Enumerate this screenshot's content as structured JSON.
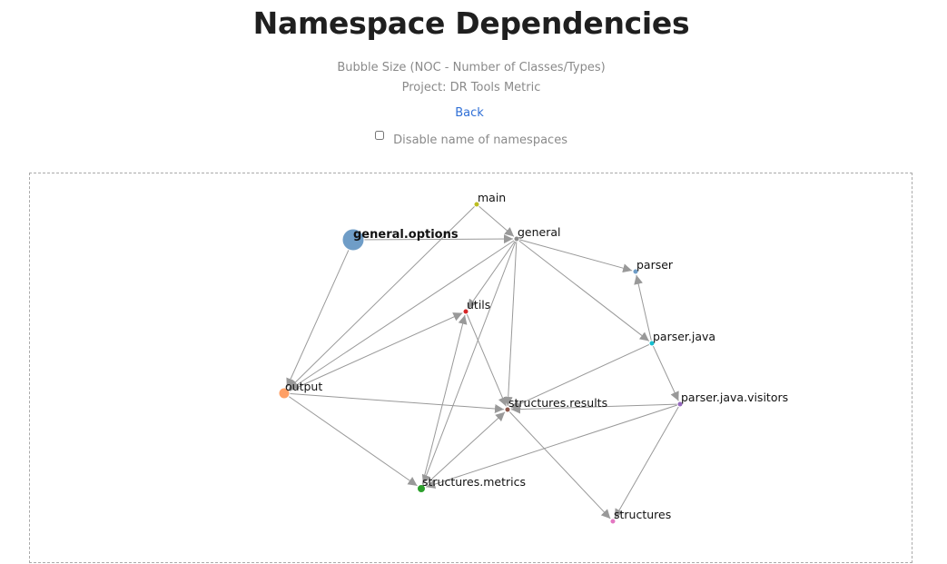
{
  "header": {
    "title": "Namespace Dependencies",
    "bubble_size": "Bubble Size (NOC - Number of Classes/Types)",
    "project": "Project: DR Tools Metric",
    "back_label": "Back",
    "toggle_label": "Disable name of namespaces",
    "toggle_checked": false
  },
  "graph": {
    "nodes": [
      {
        "id": "main",
        "label": "main",
        "color": "#bcbd22",
        "size": 1
      },
      {
        "id": "general.options",
        "label": "general.options",
        "color": "#6f9dc7",
        "size": 12
      },
      {
        "id": "general",
        "label": "general",
        "color": "#8c8c8c",
        "size": 1
      },
      {
        "id": "parser",
        "label": "parser",
        "color": "#6f9dc7",
        "size": 1
      },
      {
        "id": "utils",
        "label": "utils",
        "color": "#d62728",
        "size": 1
      },
      {
        "id": "parser.java",
        "label": "parser.java",
        "color": "#17becf",
        "size": 1
      },
      {
        "id": "output",
        "label": "output",
        "color": "#ffa066",
        "size": 3
      },
      {
        "id": "structures.results",
        "label": "structures.results",
        "color": "#8c564b",
        "size": 1
      },
      {
        "id": "parser.java.visitors",
        "label": "parser.java.visitors",
        "color": "#9467bd",
        "size": 1
      },
      {
        "id": "structures.metrics",
        "label": "structures.metrics",
        "color": "#2ca02c",
        "size": 2
      },
      {
        "id": "structures",
        "label": "structures",
        "color": "#e377c2",
        "size": 1
      }
    ],
    "edges": [
      [
        "main",
        "general"
      ],
      [
        "main",
        "output"
      ],
      [
        "general.options",
        "general"
      ],
      [
        "general.options",
        "output"
      ],
      [
        "general",
        "parser"
      ],
      [
        "general",
        "parser.java"
      ],
      [
        "general",
        "utils"
      ],
      [
        "general",
        "structures.results"
      ],
      [
        "general",
        "output"
      ],
      [
        "general",
        "structures.metrics"
      ],
      [
        "parser.java",
        "parser"
      ],
      [
        "parser.java",
        "parser.java.visitors"
      ],
      [
        "parser.java",
        "structures.results"
      ],
      [
        "parser.java.visitors",
        "structures.results"
      ],
      [
        "parser.java.visitors",
        "structures"
      ],
      [
        "parser.java.visitors",
        "structures.metrics"
      ],
      [
        "output",
        "utils"
      ],
      [
        "output",
        "structures.results"
      ],
      [
        "output",
        "structures.metrics"
      ],
      [
        "utils",
        "structures.results"
      ],
      [
        "structures.metrics",
        "utils"
      ],
      [
        "structures.metrics",
        "structures.results"
      ],
      [
        "structures.results",
        "structures"
      ]
    ]
  }
}
